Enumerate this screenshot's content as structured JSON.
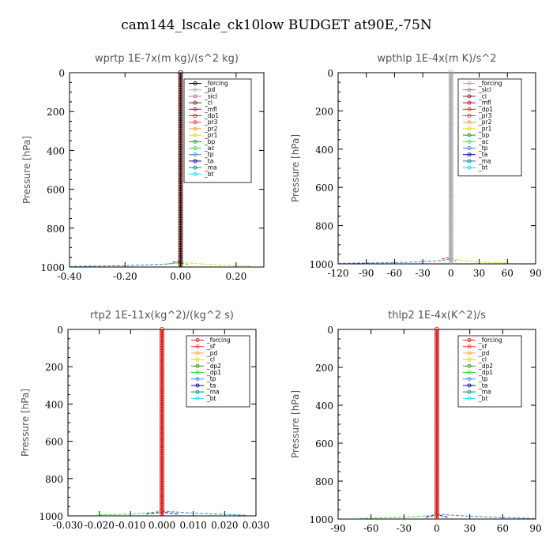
{
  "main_title": "cam144_lscale_ck10low  BUDGET at90E,-75N",
  "chart_data": [
    {
      "type": "line",
      "title": "wprtp   1E-7x(m kg)/(s^2 kg)",
      "ylabel": "Pressure [hPa]",
      "xlim": [
        -0.4,
        0.3
      ],
      "ylim": [
        1000,
        0
      ],
      "xticks": [
        "-0.40",
        "-0.20",
        "0.00",
        "0.20"
      ],
      "xtick_values": [
        -0.4,
        -0.2,
        0.0,
        0.2
      ],
      "yticks": [
        "0",
        "200",
        "400",
        "600",
        "800",
        "1000"
      ],
      "ytick_values": [
        0,
        200,
        400,
        600,
        800,
        1000
      ],
      "legend": [
        "_forcing",
        "_pd",
        "_sicl",
        "_cl",
        "_mfl",
        "_dp1",
        "_pr3",
        "_pr2",
        "_pr1",
        "_bp",
        "_ac",
        "_tp",
        "_ta",
        "_ma",
        "_bt"
      ],
      "legend_colors": [
        "#000000",
        "#aaaaaa",
        "#b266b2",
        "#702020",
        "#cc0033",
        "#dd2222",
        "#ff3333",
        "#ff9933",
        "#dddd00",
        "#229922",
        "#44dd44",
        "#3388dd",
        "#0000aa",
        "#008888",
        "#00e5ee"
      ],
      "profile_x": 0.0,
      "series": [
        {
          "name": "_forcing",
          "color": "#000000",
          "x": [
            0.0,
            0.0
          ],
          "y": [
            0,
            995
          ]
        },
        {
          "name": "_pr1",
          "color": "#dddd00",
          "x": [
            0.0,
            0.05,
            0.15,
            0.25
          ],
          "y": [
            975,
            982,
            990,
            995
          ]
        },
        {
          "name": "_tp",
          "color": "#3388dd",
          "x": [
            -0.4,
            -0.2,
            -0.05,
            0.0
          ],
          "y": [
            997,
            993,
            985,
            975
          ]
        },
        {
          "name": "_ac",
          "color": "#44dd44",
          "x": [
            -0.05,
            0.0,
            0.03
          ],
          "y": [
            985,
            978,
            988
          ]
        },
        {
          "name": "_dp1",
          "color": "#dd2222",
          "x": [
            -0.03,
            0.0
          ],
          "y": [
            975,
            970
          ]
        }
      ],
      "legend_box": "top-right"
    },
    {
      "type": "line",
      "title": "wpthlp   1E-4x(m K)/s^2",
      "ylabel": "Pressure [hPa]",
      "xlim": [
        -120,
        90
      ],
      "ylim": [
        1000,
        0
      ],
      "xticks": [
        "-120",
        "-90",
        "-60",
        "-30",
        "0",
        "30",
        "60",
        "90"
      ],
      "xtick_values": [
        -120,
        -90,
        -60,
        -30,
        0,
        30,
        60,
        90
      ],
      "yticks": [
        "0",
        "200",
        "400",
        "600",
        "800",
        "1000"
      ],
      "ytick_values": [
        0,
        200,
        400,
        600,
        800,
        1000
      ],
      "legend": [
        "_forcing",
        "_sicl",
        "_cl",
        "_mfl",
        "_dp1",
        "_pr3",
        "_pr2",
        "_pr1",
        "_bp",
        "_ac",
        "_tp",
        "_ta",
        "_ma",
        "_bt"
      ],
      "legend_colors": [
        "#aaaaaa",
        "#b266b2",
        "#702020",
        "#cc0033",
        "#dd2222",
        "#ff3333",
        "#ff9933",
        "#dddd00",
        "#229922",
        "#44dd44",
        "#3388dd",
        "#0000aa",
        "#008888",
        "#00e5ee"
      ],
      "profile_x": 0.0,
      "series": [
        {
          "name": "_forcing",
          "color": "#aaaaaa",
          "x": [
            0,
            0
          ],
          "y": [
            0,
            995
          ]
        },
        {
          "name": "_sicl",
          "color": "#b266b2",
          "x": [
            0,
            0
          ],
          "y": [
            0,
            995
          ]
        },
        {
          "name": "_pr1",
          "color": "#dddd00",
          "x": [
            0,
            10,
            30,
            60
          ],
          "y": [
            970,
            982,
            990,
            995
          ]
        },
        {
          "name": "_tp",
          "color": "#3388dd",
          "x": [
            -120,
            -60,
            -15,
            0
          ],
          "y": [
            997,
            994,
            985,
            975
          ]
        },
        {
          "name": "_dp1",
          "color": "#dd2222",
          "x": [
            -10,
            0,
            5
          ],
          "y": [
            975,
            965,
            985
          ]
        }
      ],
      "legend_box": "top-right"
    },
    {
      "type": "line",
      "title": "rtp2   1E-11x(kg^2)/(kg^2 s)",
      "ylabel": "Pressure [hPa]",
      "xlim": [
        -0.03,
        0.03
      ],
      "ylim": [
        1000,
        0
      ],
      "xticks": [
        "-0.030",
        "-0.020",
        "-0.010",
        "0.000",
        "0.010",
        "0.020",
        "0.030"
      ],
      "xtick_values": [
        -0.03,
        -0.02,
        -0.01,
        0.0,
        0.01,
        0.02,
        0.03
      ],
      "yticks": [
        "0",
        "200",
        "400",
        "600",
        "800",
        "1000"
      ],
      "ytick_values": [
        0,
        200,
        400,
        600,
        800,
        1000
      ],
      "legend": [
        "_forcing",
        "_sf",
        "_pd",
        "_cl",
        "_dp2",
        "_dp1",
        "_tp",
        "_ta",
        "_ma",
        "_bt"
      ],
      "legend_colors": [
        "#dd2222",
        "#ff3333",
        "#ffaa33",
        "#dddd00",
        "#229922",
        "#44dd44",
        "#3388dd",
        "#0000aa",
        "#008888",
        "#00e5ee"
      ],
      "profile_x": 0.0,
      "series": [
        {
          "name": "_forcing",
          "color": "#dd2222",
          "x": [
            0,
            0
          ],
          "y": [
            0,
            995
          ]
        },
        {
          "name": "_dp1",
          "color": "#44dd44",
          "x": [
            -0.02,
            -0.01,
            -0.003,
            0.0
          ],
          "y": [
            995,
            990,
            982,
            970
          ]
        },
        {
          "name": "_tp",
          "color": "#3388dd",
          "x": [
            0.0,
            0.01,
            0.02,
            0.027
          ],
          "y": [
            975,
            985,
            992,
            997
          ]
        },
        {
          "name": "_ta",
          "color": "#0000aa",
          "x": [
            -0.005,
            0.0,
            0.005
          ],
          "y": [
            990,
            980,
            990
          ]
        }
      ],
      "legend_box": "top-right"
    },
    {
      "type": "line",
      "title": "thlp2   1E-4x(K^2)/s",
      "ylabel": "Pressure [hPa]",
      "xlim": [
        -90,
        90
      ],
      "ylim": [
        1000,
        0
      ],
      "xticks": [
        "-90",
        "-60",
        "-30",
        "0",
        "30",
        "60",
        "90"
      ],
      "xtick_values": [
        -90,
        -60,
        -30,
        0,
        30,
        60,
        90
      ],
      "yticks": [
        "0",
        "200",
        "400",
        "600",
        "800",
        "1000"
      ],
      "ytick_values": [
        0,
        200,
        400,
        600,
        800,
        1000
      ],
      "legend": [
        "_forcing",
        "_sf",
        "_pd",
        "_cl",
        "_dp2",
        "_dp1",
        "_tp",
        "_ta",
        "_ma",
        "_bt"
      ],
      "legend_colors": [
        "#dd2222",
        "#ff3333",
        "#ffaa33",
        "#dddd00",
        "#229922",
        "#44dd44",
        "#3388dd",
        "#0000aa",
        "#008888",
        "#00e5ee"
      ],
      "profile_x": 0.0,
      "series": [
        {
          "name": "_forcing",
          "color": "#dd2222",
          "x": [
            0,
            0
          ],
          "y": [
            0,
            995
          ]
        },
        {
          "name": "_dp1",
          "color": "#44dd44",
          "x": [
            -70,
            -30,
            -5,
            0
          ],
          "y": [
            997,
            990,
            982,
            970
          ]
        },
        {
          "name": "_tp",
          "color": "#3388dd",
          "x": [
            0,
            30,
            60,
            90
          ],
          "y": [
            975,
            985,
            992,
            997
          ]
        },
        {
          "name": "_ta",
          "color": "#0000aa",
          "x": [
            -10,
            0,
            10
          ],
          "y": [
            990,
            978,
            990
          ]
        }
      ],
      "legend_box": "top-right"
    }
  ]
}
